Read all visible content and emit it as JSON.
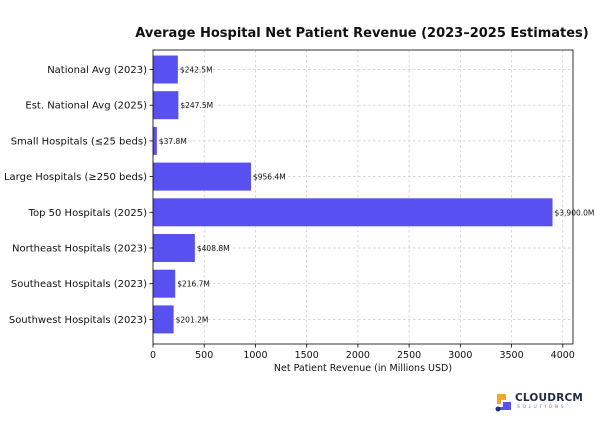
{
  "chart_data": {
    "type": "bar",
    "orientation": "horizontal",
    "title": "Average Hospital Net Patient Revenue (2023–2025 Estimates)",
    "xlabel": "Net Patient Revenue (in Millions USD)",
    "ylabel": "",
    "xlim": [
      0,
      4100
    ],
    "x_ticks": [
      0,
      500,
      1000,
      1500,
      2000,
      2500,
      3000,
      3500,
      4000
    ],
    "grid": true,
    "bar_color": "#5850f0",
    "categories": [
      "National Avg (2023)",
      "Est. National Avg (2025)",
      "Small Hospitals (≤25 beds)",
      "Large Hospitals (≥250 beds)",
      "Top 50 Hospitals (2025)",
      "Northeast Hospitals (2023)",
      "Southeast Hospitals (2023)",
      "Southwest Hospitals (2023)"
    ],
    "values": [
      242.5,
      247.5,
      37.8,
      956.4,
      3900.0,
      408.8,
      216.7,
      201.2
    ],
    "data_labels": [
      "$242.5M",
      "$247.5M",
      "$37.8M",
      "$956.4M",
      "$3,900.0M",
      "$408.8M",
      "$216.7M",
      "$201.2M"
    ]
  },
  "logo": {
    "name": "CLOUDRCM",
    "tagline": "SOLUTIONS",
    "colors": [
      "#f5a623",
      "#5850f0",
      "#2a2f8f"
    ]
  }
}
